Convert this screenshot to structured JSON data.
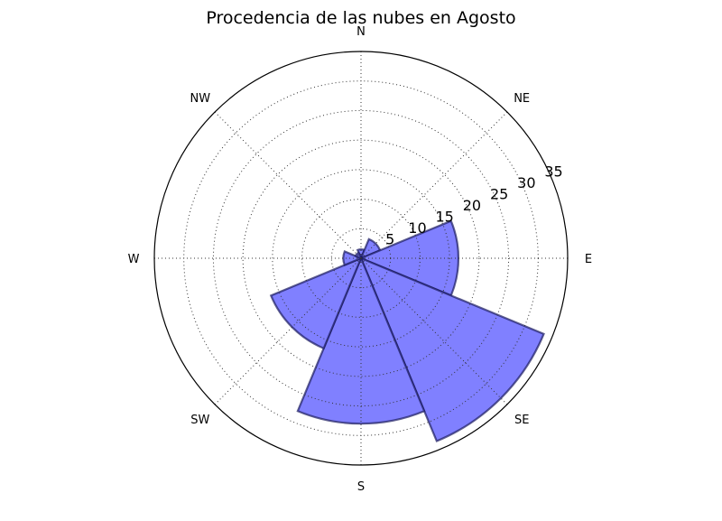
{
  "chart_data": {
    "type": "polar-bar",
    "title": "Procedencia de las nubes en Agosto",
    "directions": [
      "N",
      "NE",
      "E",
      "SE",
      "S",
      "SW",
      "W",
      "NW"
    ],
    "direction_angles_deg": [
      0,
      45,
      90,
      135,
      180,
      225,
      270,
      315
    ],
    "radial_ticks": [
      5,
      10,
      15,
      20,
      25,
      30,
      35
    ],
    "rlim": [
      0,
      35
    ],
    "grid": true,
    "bar_color": "#8080ff",
    "bar_edge_color": "#1a1a5e",
    "bars": [
      {
        "direction": "N",
        "start_deg": -22.5,
        "end_deg": 22.5,
        "value": 1.5
      },
      {
        "direction": "NE",
        "start_deg": 22.5,
        "end_deg": 67.5,
        "value": 3.5
      },
      {
        "direction": "E",
        "start_deg": 67.5,
        "end_deg": 112.5,
        "value": 16.5
      },
      {
        "direction": "SE",
        "start_deg": 112.5,
        "end_deg": 157.5,
        "value": 33.5
      },
      {
        "direction": "S",
        "start_deg": 157.5,
        "end_deg": 202.5,
        "value": 28.0
      },
      {
        "direction": "SW",
        "start_deg": 202.5,
        "end_deg": 247.5,
        "value": 16.5
      },
      {
        "direction": "W",
        "start_deg": 247.5,
        "end_deg": 292.5,
        "value": 3.0
      },
      {
        "direction": "NW",
        "start_deg": 292.5,
        "end_deg": 337.5,
        "value": 1.0
      }
    ]
  }
}
